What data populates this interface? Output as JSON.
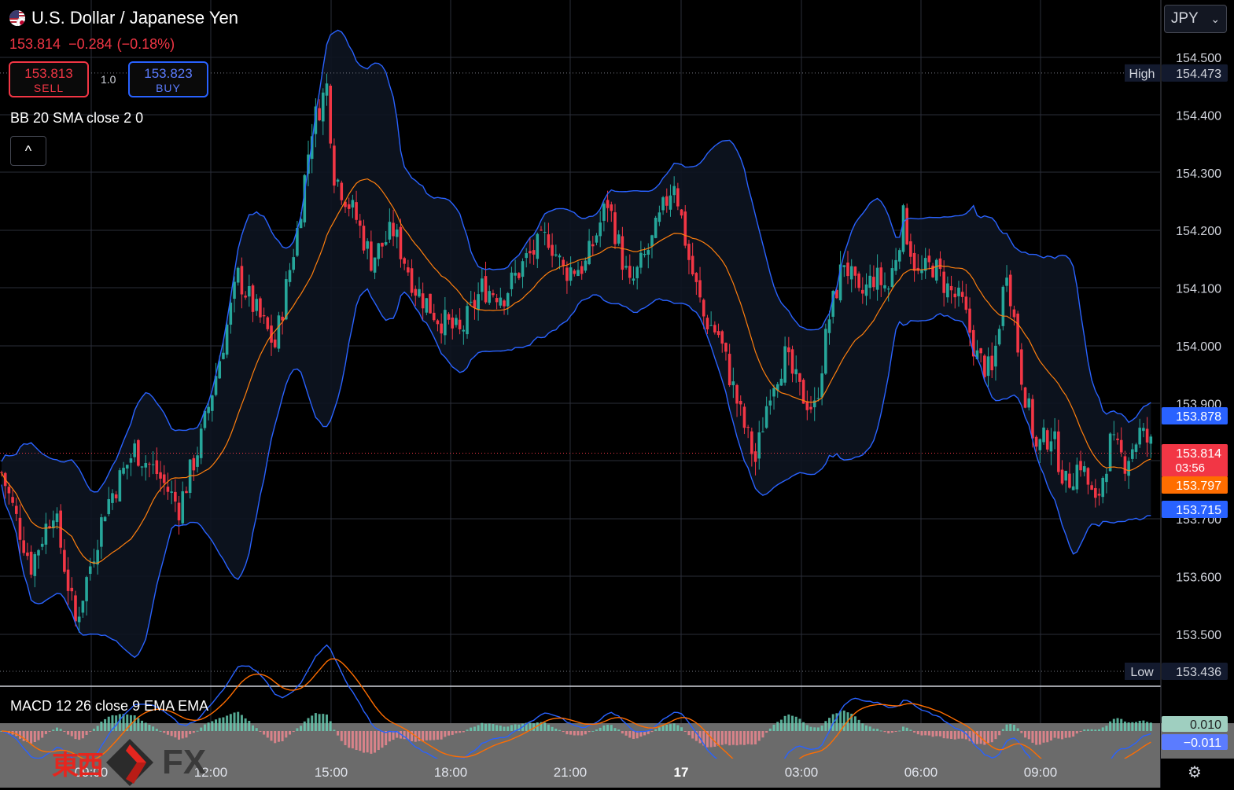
{
  "header": {
    "symbol_title": "U.S. Dollar / Japanese Yen",
    "flag_icon": "us-jp-flag-icon",
    "last_price": "153.814",
    "change": "−0.284",
    "change_pct": "(−0.18%)"
  },
  "trade": {
    "sell_price": "153.813",
    "sell_label": "SELL",
    "buy_price": "153.823",
    "buy_label": "BUY",
    "quantity": "1.0"
  },
  "indicators": {
    "bb_label": "BB 20 SMA close 2 0",
    "macd_label": "MACD 12 26 close 9 EMA EMA",
    "collapse_glyph": "^"
  },
  "currency_selector": {
    "value": "JPY",
    "chevron_glyph": "⌄"
  },
  "watermark": {
    "kanji": "東西",
    "fx": "FX"
  },
  "settings_glyph": "⚙",
  "colors": {
    "up": "#26a69a",
    "down": "#f23645",
    "bb_band": "#2962ff",
    "bb_basis": "#ff7f0e",
    "macd_line": "#2962ff",
    "signal_line": "#ff6d00",
    "grid": "#2a2e39"
  },
  "chart_data": {
    "type": "candlestick",
    "y_axis": {
      "min": 153.4,
      "max": 154.58,
      "ticks": [
        "154.500",
        "154.400",
        "154.300",
        "154.200",
        "154.100",
        "154.000",
        "153.900",
        "153.700",
        "153.600",
        "153.500"
      ]
    },
    "x_axis": {
      "ticks": [
        "09:00",
        "12:00",
        "15:00",
        "18:00",
        "21:00",
        "17",
        "03:00",
        "06:00",
        "09:00"
      ]
    },
    "price_labels": {
      "high_label": "High",
      "high_value": "154.473",
      "low_label": "Low",
      "low_value": "153.436",
      "bb_upper": "153.878",
      "last": "153.814",
      "countdown": "03:56",
      "bb_basis": "153.797",
      "bb_lower": "153.715"
    },
    "macd_labels": {
      "macd": "0.010",
      "signal": "−0.011"
    },
    "close_path": [
      [
        0,
        153.78
      ],
      [
        8,
        153.62
      ],
      [
        14,
        153.72
      ],
      [
        20,
        153.52
      ],
      [
        28,
        153.72
      ],
      [
        36,
        153.82
      ],
      [
        42,
        153.78
      ],
      [
        48,
        153.72
      ],
      [
        54,
        153.84
      ],
      [
        58,
        153.95
      ],
      [
        64,
        154.12
      ],
      [
        68,
        154.07
      ],
      [
        74,
        154.0
      ],
      [
        80,
        154.2
      ],
      [
        84,
        154.38
      ],
      [
        88,
        154.45
      ],
      [
        90,
        154.3
      ],
      [
        96,
        154.22
      ],
      [
        100,
        154.15
      ],
      [
        106,
        154.2
      ],
      [
        112,
        154.1
      ],
      [
        118,
        154.05
      ],
      [
        124,
        154.02
      ],
      [
        130,
        154.1
      ],
      [
        136,
        154.09
      ],
      [
        142,
        154.15
      ],
      [
        148,
        154.19
      ],
      [
        152,
        154.13
      ],
      [
        158,
        154.14
      ],
      [
        164,
        154.25
      ],
      [
        170,
        154.1
      ],
      [
        176,
        154.18
      ],
      [
        182,
        154.29
      ],
      [
        186,
        154.15
      ],
      [
        190,
        154.05
      ],
      [
        194,
        154.02
      ],
      [
        200,
        153.88
      ],
      [
        204,
        153.8
      ],
      [
        208,
        153.93
      ],
      [
        212,
        153.98
      ],
      [
        216,
        153.92
      ],
      [
        220,
        153.89
      ],
      [
        224,
        154.05
      ],
      [
        228,
        154.15
      ],
      [
        232,
        154.08
      ],
      [
        236,
        154.12
      ],
      [
        240,
        154.1
      ],
      [
        244,
        154.22
      ],
      [
        248,
        154.12
      ],
      [
        252,
        154.14
      ],
      [
        256,
        154.1
      ],
      [
        260,
        154.07
      ],
      [
        264,
        153.98
      ],
      [
        268,
        153.95
      ],
      [
        272,
        154.14
      ],
      [
        276,
        153.95
      ],
      [
        280,
        153.82
      ],
      [
        284,
        153.85
      ],
      [
        288,
        153.76
      ],
      [
        292,
        153.8
      ],
      [
        296,
        153.72
      ],
      [
        300,
        153.83
      ],
      [
        304,
        153.8
      ],
      [
        308,
        153.85
      ],
      [
        312,
        153.82
      ]
    ],
    "n_candles": 312
  }
}
